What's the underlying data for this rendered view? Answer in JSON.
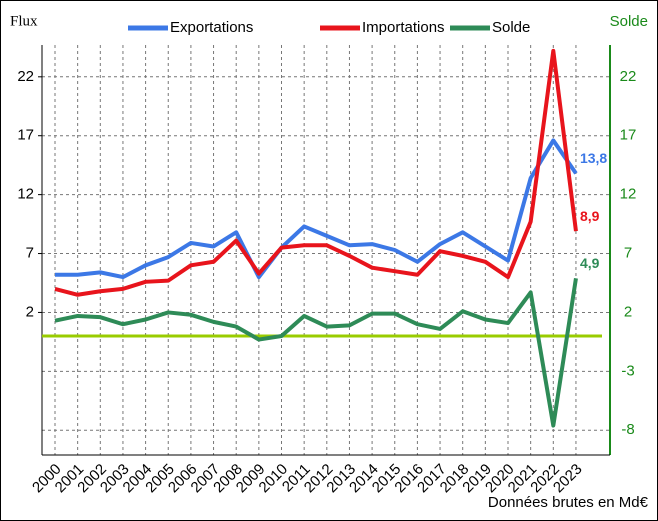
{
  "chart_data": {
    "type": "line",
    "y_label": "Flux",
    "y2_label": "Solde",
    "note": "Données brutes en Md€",
    "categories": [
      "2000",
      "2001",
      "2002",
      "2003",
      "2004",
      "2005",
      "2006",
      "2007",
      "2008",
      "2009",
      "2010",
      "2011",
      "2012",
      "2013",
      "2014",
      "2015",
      "2016",
      "2017",
      "2018",
      "2019",
      "2020",
      "2021",
      "2022",
      "2023"
    ],
    "series": [
      {
        "name": "Exportations",
        "color": "#3c78e6",
        "values": [
          5.2,
          5.2,
          5.4,
          5.0,
          6.0,
          6.7,
          7.9,
          7.6,
          8.8,
          5.0,
          7.5,
          9.3,
          8.5,
          7.7,
          7.8,
          7.3,
          6.3,
          7.8,
          8.8,
          7.6,
          6.4,
          13.4,
          16.6,
          13.8
        ],
        "value_labels": [
          null,
          null,
          null,
          null,
          null,
          null,
          null,
          null,
          null,
          null,
          null,
          null,
          null,
          null,
          null,
          null,
          null,
          null,
          null,
          null,
          null,
          null,
          null,
          "13,8"
        ]
      },
      {
        "name": "Importations",
        "color": "#e8141c",
        "values": [
          4.0,
          3.5,
          3.8,
          4.0,
          4.6,
          4.7,
          6.0,
          6.3,
          8.1,
          5.3,
          7.5,
          7.7,
          7.7,
          6.8,
          5.8,
          5.5,
          5.2,
          7.2,
          6.8,
          6.3,
          5.0,
          9.7,
          24.2,
          8.9
        ],
        "value_labels": [
          null,
          null,
          null,
          null,
          null,
          null,
          null,
          null,
          null,
          null,
          null,
          null,
          null,
          null,
          null,
          null,
          null,
          null,
          null,
          null,
          null,
          null,
          null,
          "8,9"
        ]
      },
      {
        "name": "Solde",
        "color": "#2e8b57",
        "axis": "y2",
        "values": [
          1.3,
          1.7,
          1.6,
          1.0,
          1.4,
          2.0,
          1.8,
          1.2,
          0.8,
          -0.3,
          0.0,
          1.7,
          0.8,
          0.9,
          1.9,
          1.9,
          1.0,
          0.6,
          2.1,
          1.4,
          1.1,
          3.7,
          -7.6,
          4.9
        ],
        "value_labels": [
          null,
          null,
          null,
          null,
          null,
          null,
          null,
          null,
          null,
          null,
          null,
          null,
          null,
          null,
          null,
          null,
          null,
          null,
          null,
          null,
          null,
          null,
          null,
          "4,9"
        ]
      }
    ],
    "ylim": [
      -10.1,
      24.7
    ],
    "yticks": [
      2,
      7,
      12,
      17,
      22
    ],
    "y2lim": [
      -10.1,
      24.7
    ],
    "y2ticks": [
      -8,
      -3,
      2,
      7,
      12,
      17,
      22
    ],
    "y2_color": "#1a8a1a",
    "reference_line": {
      "value": 0,
      "axis": "y2",
      "color": "#99cc00"
    },
    "grid": true
  }
}
